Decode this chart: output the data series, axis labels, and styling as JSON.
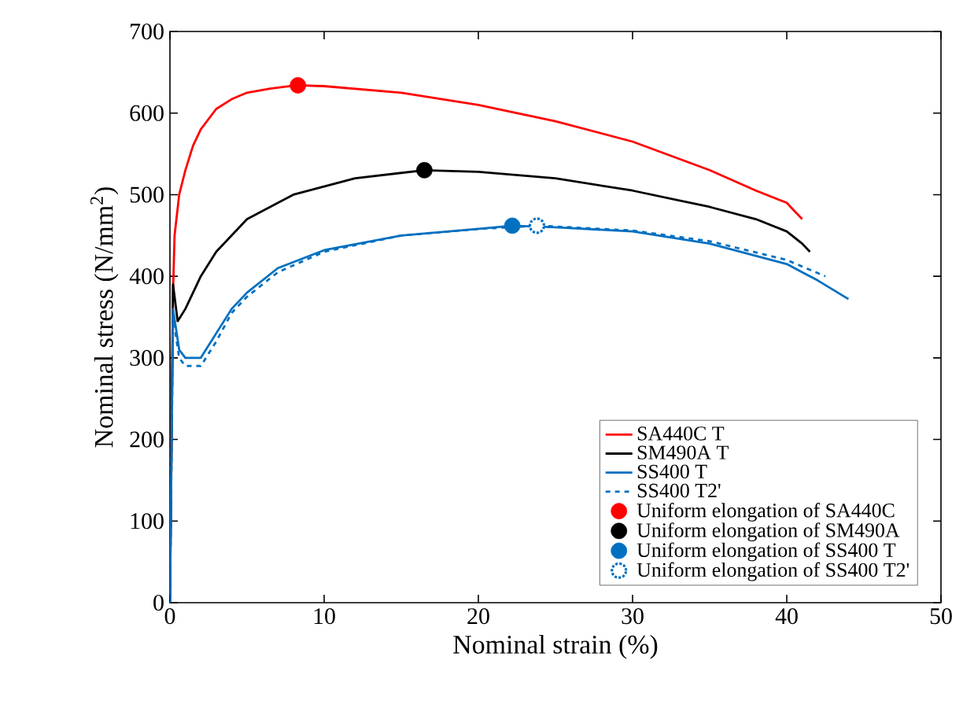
{
  "chart_data": {
    "type": "line",
    "xlabel": "Nominal strain (%)",
    "ylabel": "Nominal stress (N/mm$^{2}$)",
    "xlim": [
      0,
      50
    ],
    "ylim": [
      0,
      700
    ],
    "xticks": [
      0,
      10,
      20,
      30,
      40,
      50
    ],
    "yticks": [
      0,
      100,
      200,
      300,
      400,
      500,
      600,
      700
    ],
    "grid": false,
    "legend": "bottom right",
    "marker": "none",
    "series": [
      {
        "name": "SA440C T",
        "color": "#ff0000",
        "line_style": "solid",
        "x": [
          0,
          0.2,
          0.3,
          0.6,
          1,
          1.5,
          2,
          3,
          4,
          5,
          6.5,
          8.2,
          10,
          15,
          20,
          25,
          30,
          35,
          38,
          40,
          40.5,
          41
        ],
        "values": [
          0,
          380,
          450,
          500,
          530,
          560,
          580,
          605,
          617,
          625,
          630,
          634,
          633,
          625,
          610,
          590,
          565,
          530,
          505,
          490,
          480,
          470
        ]
      },
      {
        "name": "SM490A T",
        "color": "#000000",
        "line_style": "solid",
        "x": [
          0,
          0.2,
          0.5,
          1,
          2,
          3,
          5,
          8,
          12,
          16.5,
          20,
          25,
          30,
          35,
          38,
          40,
          41,
          41.5
        ],
        "values": [
          0,
          390,
          345,
          360,
          400,
          430,
          470,
          500,
          520,
          530,
          528,
          520,
          505,
          485,
          470,
          455,
          440,
          430
        ]
      },
      {
        "name": "SS400 T",
        "color": "#0070c0",
        "line_style": "solid",
        "x": [
          0,
          0.2,
          0.6,
          1,
          2,
          3,
          4,
          5,
          7,
          10,
          15,
          20,
          22.2,
          25,
          30,
          35,
          40,
          42,
          44
        ],
        "values": [
          0,
          360,
          310,
          300,
          300,
          330,
          360,
          380,
          410,
          432,
          450,
          458,
          462,
          460,
          455,
          440,
          415,
          395,
          372
        ]
      },
      {
        "name": "SS400 T2'",
        "color": "#0070c0",
        "line_style": "dashed",
        "x": [
          0,
          0.2,
          0.6,
          1,
          2,
          3,
          4,
          5,
          7,
          10,
          15,
          20,
          24,
          30,
          35,
          40,
          42.5
        ],
        "values": [
          0,
          350,
          300,
          290,
          290,
          320,
          355,
          375,
          405,
          430,
          450,
          458,
          462,
          456,
          443,
          420,
          400
        ]
      },
      {
        "name": "Uniform elongation of SA440C",
        "type": "scatter",
        "marker": "circle",
        "color": "#ff0000",
        "x": [
          8.3
        ],
        "values": [
          634
        ]
      },
      {
        "name": "Uniform elongation of SM490A",
        "type": "scatter",
        "marker": "circle",
        "color": "#000000",
        "x": [
          16.5
        ],
        "values": [
          530
        ]
      },
      {
        "name": "Uniform elongation of SS400 T",
        "type": "scatter",
        "marker": "circle",
        "color": "#0070c0",
        "x": [
          22.2
        ],
        "values": [
          462
        ]
      },
      {
        "name": "Uniform elongation of SS400 T2'",
        "type": "scatter",
        "marker": "circle",
        "line_style": "dotted",
        "color": "#0070c0",
        "x": [
          23.8
        ],
        "values": [
          462
        ]
      }
    ]
  }
}
